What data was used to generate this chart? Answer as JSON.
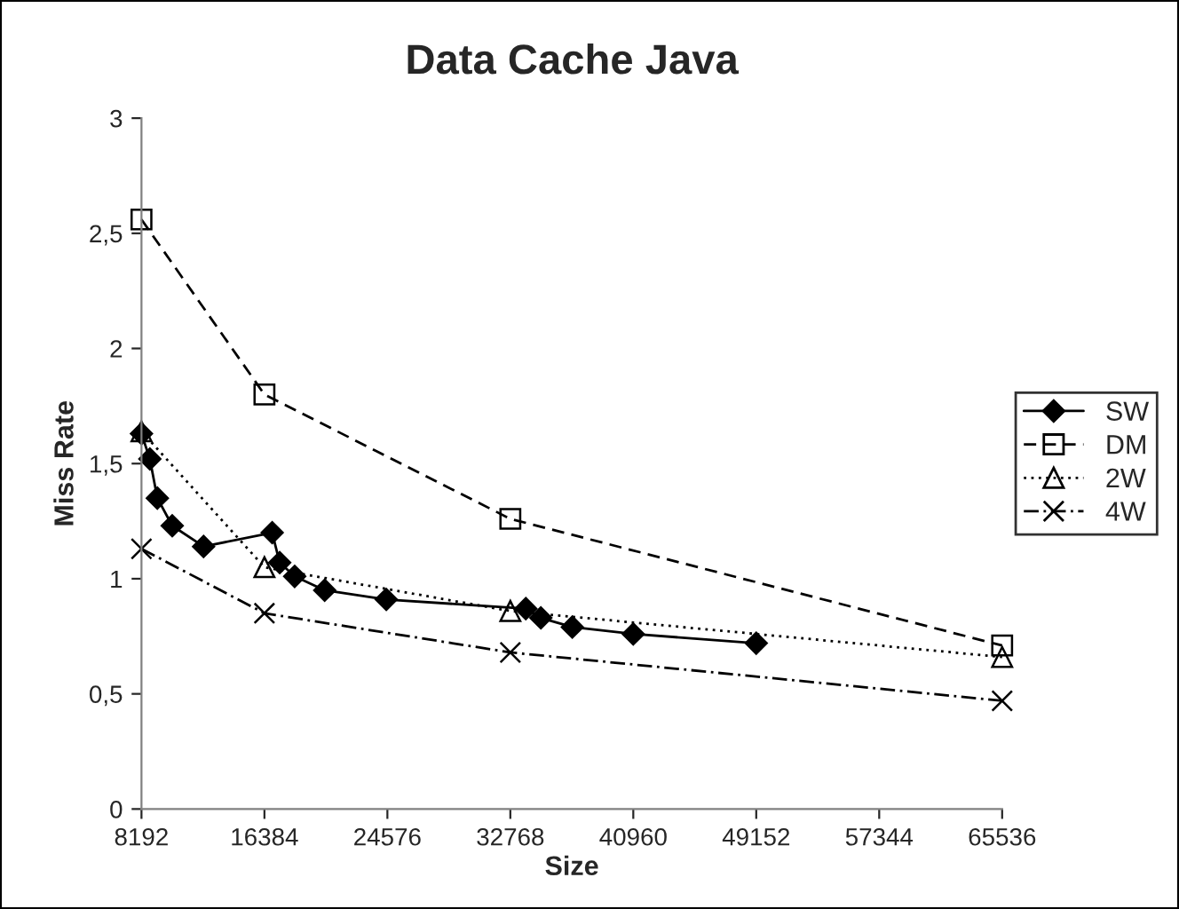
{
  "chart_data": {
    "type": "line",
    "title": "Data Cache Java",
    "xlabel": "Size",
    "ylabel": "Miss Rate",
    "xlim": [
      8192,
      65536
    ],
    "xticks": [
      8192,
      16384,
      24576,
      32768,
      40960,
      49152,
      57344,
      65536
    ],
    "ylim": [
      0,
      3
    ],
    "yticks": [
      0,
      {
        "value": 0.5,
        "label": "0,5"
      },
      1,
      {
        "value": 1.5,
        "label": "1,5"
      },
      2,
      {
        "value": 2.5,
        "label": "2,5"
      },
      3
    ],
    "grid": false,
    "legend": "right",
    "series": [
      {
        "name": "SW",
        "color": "#000000",
        "marker": "diamond",
        "line_style": "solid",
        "x": [
          8192,
          8750,
          9250,
          10240,
          12330,
          16900,
          17400,
          18400,
          20400,
          24500,
          33800,
          34800,
          36900,
          40960,
          49152
        ],
        "values": [
          1.63,
          1.52,
          1.35,
          1.23,
          1.14,
          1.2,
          1.07,
          1.01,
          0.95,
          0.91,
          0.87,
          0.83,
          0.79,
          0.76,
          0.72
        ]
      },
      {
        "name": "DM",
        "color": "#000000",
        "marker": "square",
        "line_style": "dashed",
        "x": [
          8192,
          16384,
          32768,
          65536
        ],
        "values": [
          2.56,
          1.8,
          1.26,
          0.71
        ]
      },
      {
        "name": "2W",
        "color": "#000000",
        "marker": "triangle",
        "line_style": "dotted",
        "x": [
          8192,
          16384,
          32768,
          65536
        ],
        "values": [
          1.64,
          1.05,
          0.86,
          0.66
        ]
      },
      {
        "name": "4W",
        "color": "#000000",
        "marker": "cross",
        "line_style": "dashdot",
        "x": [
          8192,
          16384,
          32768,
          65536
        ],
        "values": [
          1.13,
          0.85,
          0.68,
          0.47
        ]
      }
    ]
  }
}
